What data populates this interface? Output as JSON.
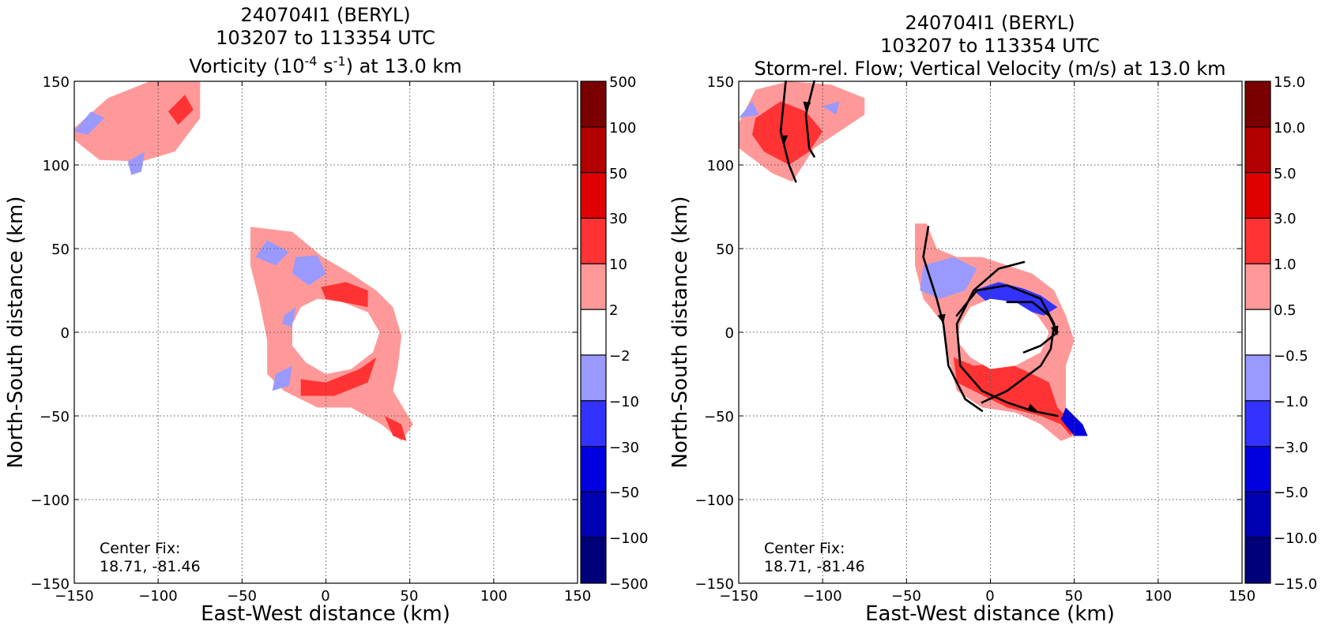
{
  "chart_data": [
    {
      "type": "heatmap",
      "title_lines": [
        "240704I1 (BERYL)",
        "103207 to 113354 UTC"
      ],
      "title_line3": {
        "pre": "Vorticity (10",
        "sup1": "-4",
        "mid": " s",
        "sup2": "-1",
        "post": ") at 13.0 km"
      },
      "xlabel": "East-West distance (km)",
      "ylabel": "North-South distance (km)",
      "xlim": [
        -150,
        150
      ],
      "ylim": [
        -150,
        150
      ],
      "xticks": [
        "−150",
        "−100",
        "−50",
        "0",
        "50",
        "100",
        "150"
      ],
      "yticks": [
        "150",
        "100",
        "50",
        "0",
        "−50",
        "−100",
        "−150"
      ],
      "grid": true,
      "annotation": [
        "Center Fix:",
        "18.71, -81.46"
      ],
      "colorbar": {
        "levels": [
          "500",
          "100",
          "50",
          "30",
          "10",
          "2",
          "−2",
          "−10",
          "−30",
          "−50",
          "−100",
          "−500"
        ],
        "colors": [
          "#7a0000",
          "#b30000",
          "#e00000",
          "#ff3333",
          "#ff9999",
          "#ffffff",
          "#9999ff",
          "#3333ff",
          "#0000e0",
          "#0000b3",
          "#00007a"
        ]
      },
      "regions": [
        {
          "color": "#ff9999",
          "pts": [
            [
              -150,
              122
            ],
            [
              -130,
              140
            ],
            [
              -105,
              150
            ],
            [
              -75,
              150
            ],
            [
              -75,
              128
            ],
            [
              -90,
              108
            ],
            [
              -110,
              102
            ],
            [
              -135,
              103
            ],
            [
              -150,
              115
            ]
          ]
        },
        {
          "color": "#ff3333",
          "pts": [
            [
              -94,
              132
            ],
            [
              -84,
              142
            ],
            [
              -79,
              133
            ],
            [
              -88,
              124
            ]
          ]
        },
        {
          "color": "#9999ff",
          "pts": [
            [
              -150,
              120
            ],
            [
              -140,
              132
            ],
            [
              -132,
              128
            ],
            [
              -142,
              118
            ]
          ]
        },
        {
          "color": "#9999ff",
          "pts": [
            [
              -118,
              102
            ],
            [
              -108,
              108
            ],
            [
              -110,
              96
            ],
            [
              -116,
              94
            ]
          ]
        },
        {
          "color": "#ff9999",
          "pts": [
            [
              -45,
              63
            ],
            [
              -20,
              60
            ],
            [
              -2,
              45
            ],
            [
              15,
              35
            ],
            [
              30,
              25
            ],
            [
              40,
              15
            ],
            [
              45,
              -2
            ],
            [
              43,
              -20
            ],
            [
              40,
              -35
            ],
            [
              52,
              -55
            ],
            [
              45,
              -65
            ],
            [
              33,
              -55
            ],
            [
              15,
              -45
            ],
            [
              -5,
              -45
            ],
            [
              -25,
              -35
            ],
            [
              -35,
              -25
            ],
            [
              -35,
              -5
            ],
            [
              -40,
              20
            ],
            [
              -45,
              40
            ]
          ]
        },
        {
          "color": "#9999ff",
          "pts": [
            [
              -42,
              45
            ],
            [
              -30,
              40
            ],
            [
              -22,
              48
            ],
            [
              -35,
              55
            ]
          ]
        },
        {
          "color": "#9999ff",
          "pts": [
            [
              -18,
              45
            ],
            [
              -5,
              46
            ],
            [
              0,
              35
            ],
            [
              -10,
              28
            ],
            [
              -20,
              35
            ]
          ]
        },
        {
          "color": "#9999ff",
          "pts": [
            [
              -30,
              -25
            ],
            [
              -20,
              -20
            ],
            [
              -22,
              -32
            ],
            [
              -32,
              -35
            ]
          ]
        },
        {
          "color": "#9999ff",
          "pts": [
            [
              -25,
              10
            ],
            [
              -18,
              15
            ],
            [
              -20,
              3
            ],
            [
              -26,
              5
            ]
          ]
        },
        {
          "color": "#ff3333",
          "pts": [
            [
              -3,
              27
            ],
            [
              12,
              30
            ],
            [
              25,
              25
            ],
            [
              25,
              15
            ],
            [
              10,
              18
            ],
            [
              0,
              20
            ]
          ]
        },
        {
          "color": "#ff3333",
          "pts": [
            [
              -15,
              -28
            ],
            [
              0,
              -30
            ],
            [
              20,
              -22
            ],
            [
              30,
              -15
            ],
            [
              25,
              -30
            ],
            [
              5,
              -38
            ],
            [
              -15,
              -38
            ]
          ]
        },
        {
          "color": "#ff3333",
          "pts": [
            [
              35,
              -50
            ],
            [
              45,
              -55
            ],
            [
              48,
              -65
            ],
            [
              40,
              -62
            ]
          ]
        },
        {
          "color": "#ffffff",
          "pts": [
            [
              -20,
              5
            ],
            [
              -15,
              15
            ],
            [
              -5,
              20
            ],
            [
              10,
              18
            ],
            [
              25,
              12
            ],
            [
              32,
              0
            ],
            [
              28,
              -12
            ],
            [
              15,
              -22
            ],
            [
              0,
              -25
            ],
            [
              -12,
              -18
            ],
            [
              -20,
              -8
            ]
          ]
        }
      ]
    },
    {
      "type": "heatmap",
      "title_lines": [
        "240704I1 (BERYL)",
        "103207 to 113354 UTC",
        "Storm-rel. Flow; Vertical Velocity (m/s) at 13.0 km"
      ],
      "xlabel": "East-West distance (km)",
      "ylabel": "North-South distance (km)",
      "xlim": [
        -150,
        150
      ],
      "ylim": [
        -150,
        150
      ],
      "xticks": [
        "−150",
        "−100",
        "−50",
        "0",
        "50",
        "100",
        "150"
      ],
      "yticks": [
        "150",
        "100",
        "50",
        "0",
        "−50",
        "−100",
        "−150"
      ],
      "grid": true,
      "annotation": [
        "Center Fix:",
        "18.71, -81.46"
      ],
      "colorbar": {
        "levels": [
          "15.0",
          "10.0",
          "5.0",
          "3.0",
          "1.0",
          "0.5",
          "−0.5",
          "−1.0",
          "−3.0",
          "−5.0",
          "−10.0",
          "−15.0"
        ],
        "colors": [
          "#7a0000",
          "#b30000",
          "#e00000",
          "#ff3333",
          "#ff9999",
          "#ffffff",
          "#9999ff",
          "#3333ff",
          "#0000e0",
          "#0000b3",
          "#00007a"
        ]
      },
      "regions": [
        {
          "color": "#ff9999",
          "pts": [
            [
              -150,
              125
            ],
            [
              -140,
              145
            ],
            [
              -120,
              150
            ],
            [
              -95,
              148
            ],
            [
              -75,
              140
            ],
            [
              -75,
              130
            ],
            [
              -90,
              120
            ],
            [
              -105,
              110
            ],
            [
              -118,
              90
            ],
            [
              -130,
              95
            ],
            [
              -150,
              110
            ]
          ]
        },
        {
          "color": "#ff3333",
          "pts": [
            [
              -140,
              128
            ],
            [
              -125,
              138
            ],
            [
              -110,
              132
            ],
            [
              -100,
              120
            ],
            [
              -108,
              108
            ],
            [
              -120,
              100
            ],
            [
              -135,
              108
            ],
            [
              -142,
              118
            ]
          ]
        },
        {
          "color": "#9999ff",
          "pts": [
            [
              -150,
              128
            ],
            [
              -142,
              138
            ],
            [
              -138,
              130
            ]
          ]
        },
        {
          "color": "#9999ff",
          "pts": [
            [
              -100,
              135
            ],
            [
              -90,
              138
            ],
            [
              -92,
              130
            ]
          ]
        },
        {
          "color": "#ff9999",
          "pts": [
            [
              -45,
              65
            ],
            [
              -38,
              65
            ],
            [
              -32,
              50
            ],
            [
              -20,
              45
            ],
            [
              -5,
              45
            ],
            [
              10,
              40
            ],
            [
              25,
              35
            ],
            [
              38,
              25
            ],
            [
              45,
              10
            ],
            [
              50,
              -5
            ],
            [
              45,
              -20
            ],
            [
              45,
              -45
            ],
            [
              55,
              -60
            ],
            [
              42,
              -65
            ],
            [
              30,
              -55
            ],
            [
              15,
              -48
            ],
            [
              -5,
              -45
            ],
            [
              -20,
              -35
            ],
            [
              -25,
              -15
            ],
            [
              -28,
              5
            ],
            [
              -40,
              20
            ],
            [
              -45,
              40
            ]
          ]
        },
        {
          "color": "#9999ff",
          "pts": [
            [
              -40,
              40
            ],
            [
              -22,
              45
            ],
            [
              -8,
              38
            ],
            [
              -15,
              25
            ],
            [
              -30,
              20
            ],
            [
              -42,
              25
            ]
          ]
        },
        {
          "color": "#3333ff",
          "pts": [
            [
              -10,
              25
            ],
            [
              5,
              30
            ],
            [
              20,
              26
            ],
            [
              30,
              22
            ],
            [
              40,
              15
            ],
            [
              32,
              10
            ],
            [
              15,
              15
            ],
            [
              -2,
              18
            ]
          ]
        },
        {
          "color": "#ff3333",
          "pts": [
            [
              -22,
              -15
            ],
            [
              -10,
              -20
            ],
            [
              10,
              -18
            ],
            [
              25,
              -25
            ],
            [
              35,
              -30
            ],
            [
              40,
              -45
            ],
            [
              50,
              -55
            ],
            [
              48,
              -62
            ],
            [
              42,
              -55
            ],
            [
              30,
              -50
            ],
            [
              10,
              -45
            ],
            [
              -10,
              -35
            ],
            [
              -20,
              -30
            ]
          ]
        },
        {
          "color": "#0000e0",
          "pts": [
            [
              45,
              -45
            ],
            [
              55,
              -55
            ],
            [
              58,
              -62
            ],
            [
              50,
              -62
            ],
            [
              42,
              -52
            ]
          ]
        },
        {
          "color": "#ffffff",
          "pts": [
            [
              -18,
              5
            ],
            [
              -12,
              15
            ],
            [
              0,
              20
            ],
            [
              15,
              18
            ],
            [
              28,
              10
            ],
            [
              35,
              0
            ],
            [
              30,
              -12
            ],
            [
              15,
              -20
            ],
            [
              0,
              -22
            ],
            [
              -12,
              -15
            ],
            [
              -20,
              -5
            ]
          ]
        }
      ],
      "streamlines": [
        {
          "pts": [
            [
              -122,
              150
            ],
            [
              -125,
              120
            ],
            [
              -120,
              100
            ],
            [
              -116,
              90
            ]
          ],
          "arrows": [
            [
              -123,
              120,
              -123,
              112
            ]
          ]
        },
        {
          "pts": [
            [
              -105,
              150
            ],
            [
              -110,
              130
            ],
            [
              -108,
              110
            ],
            [
              -105,
              105
            ]
          ],
          "arrows": [
            [
              -109,
              140,
              -110,
              132
            ]
          ]
        },
        {
          "pts": [
            [
              -37,
              63
            ],
            [
              -40,
              45
            ],
            [
              -32,
              20
            ],
            [
              -28,
              5
            ],
            [
              -25,
              -20
            ],
            [
              -15,
              -40
            ],
            [
              -5,
              -47
            ]
          ],
          "arrows": [
            [
              -30,
              15,
              -28,
              5
            ]
          ]
        },
        {
          "pts": [
            [
              20,
              42
            ],
            [
              5,
              38
            ],
            [
              -10,
              25
            ],
            [
              -20,
              5
            ],
            [
              -18,
              -20
            ],
            [
              -5,
              -35
            ],
            [
              10,
              -42
            ],
            [
              25,
              -47
            ],
            [
              40,
              -50
            ]
          ],
          "arrows": [
            [
              18,
              -43,
              28,
              -47
            ]
          ]
        },
        {
          "pts": [
            [
              10,
              18
            ],
            [
              25,
              18
            ],
            [
              35,
              10
            ],
            [
              40,
              0
            ],
            [
              30,
              -8
            ],
            [
              20,
              -12
            ]
          ],
          "arrows": [
            [
              38,
              4,
              40,
              -2
            ]
          ]
        },
        {
          "pts": [
            [
              -20,
              10
            ],
            [
              -8,
              25
            ],
            [
              10,
              28
            ],
            [
              30,
              20
            ],
            [
              38,
              5
            ],
            [
              36,
              -10
            ],
            [
              30,
              -20
            ],
            [
              10,
              -35
            ],
            [
              -5,
              -42
            ]
          ],
          "arrows": []
        }
      ]
    }
  ]
}
